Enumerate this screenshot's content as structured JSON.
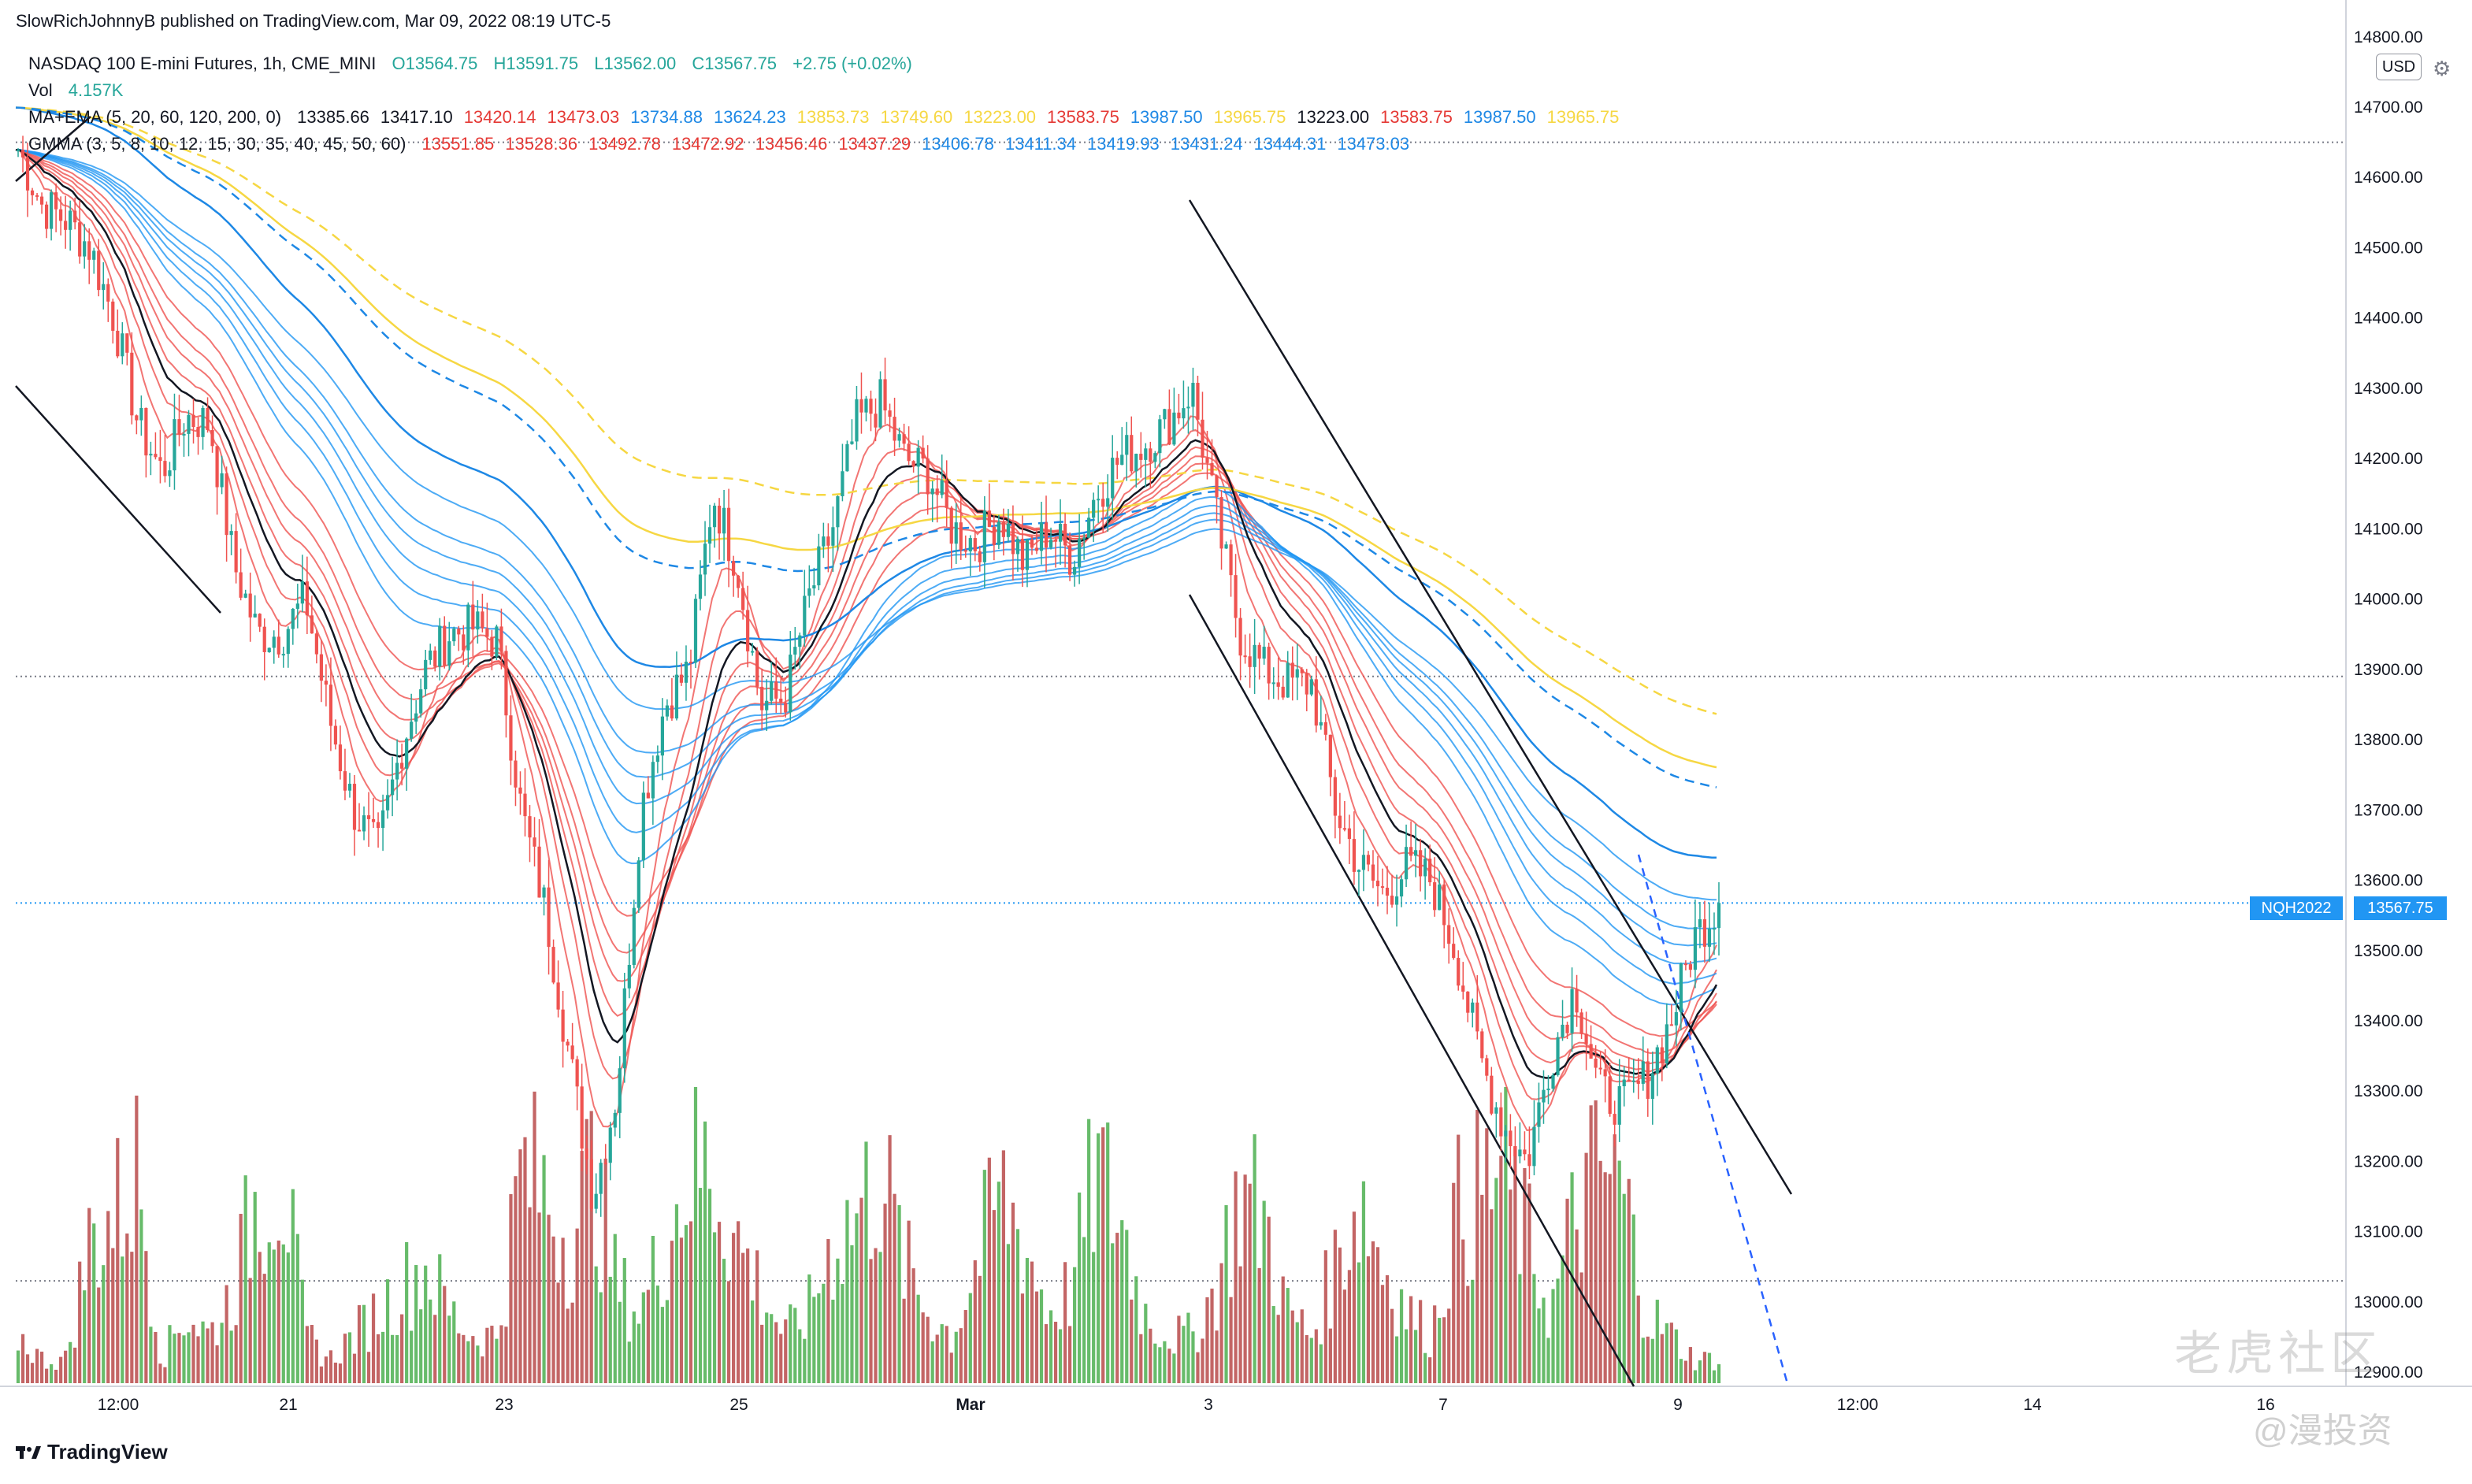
{
  "header": {
    "publisher": "SlowRichJohnnyB published on TradingView.com, Mar 09, 2022 08:19 UTC-5"
  },
  "legend": {
    "line1": {
      "symbol": "NASDAQ 100 E-mini Futures, 1h, CME_MINI",
      "o": "O13564.75",
      "h": "H13591.75",
      "l": "L13562.00",
      "c": "C13567.75",
      "chg": "+2.75 (+0.02%)"
    },
    "line2": {
      "label": "Vol",
      "value": "4.157K"
    },
    "line3": {
      "label": "MA+EMA (5, 20, 60, 120, 200, 0)",
      "values": [
        "13385.66",
        "13417.10",
        "13420.14",
        "13473.03",
        "13734.88",
        "13624.23",
        "13853.73",
        "13749.60",
        "13223.00",
        "13583.75",
        "13987.50",
        "13965.75",
        "13223.00",
        "13583.75",
        "13987.50",
        "13965.75"
      ],
      "colors": [
        "#131722",
        "#131722",
        "#e53935",
        "#e53935",
        "#1e88e5",
        "#1e88e5",
        "#f6d743",
        "#f6d743",
        "#f6d743",
        "#e53935",
        "#1e88e5",
        "#f6d743",
        "#131722",
        "#e53935",
        "#1e88e5",
        "#f6d743"
      ]
    },
    "line4": {
      "label": "GMMA (3, 5, 8, 10, 12, 15, 30, 35, 40, 45, 50, 60)",
      "values": [
        "13551.85",
        "13528.36",
        "13492.78",
        "13472.92",
        "13456.46",
        "13437.29",
        "13406.78",
        "13411.34",
        "13419.93",
        "13431.24",
        "13444.31",
        "13473.03"
      ]
    }
  },
  "price_scale": {
    "currency": "USD",
    "last_symbol": "NQH2022",
    "last_price": "13567.75"
  },
  "watermark": {
    "brand": "老虎社区",
    "handle": "@漫投资",
    "logo": "TradingView"
  },
  "chart_data": {
    "type": "candlestick",
    "title": "NASDAQ 100 E-mini Futures, 1h, CME_MINI",
    "x_tick_labels": [
      "12:00",
      "21",
      "23",
      "25",
      "Mar",
      "3",
      "7",
      "9",
      "12:00",
      "14",
      "16"
    ],
    "y_tick_labels": [
      "12900.00",
      "13000.00",
      "13100.00",
      "13200.00",
      "13300.00",
      "13400.00",
      "13500.00",
      "13600.00",
      "13700.00",
      "13800.00",
      "13900.00",
      "14000.00",
      "14100.00",
      "14200.00",
      "14300.00",
      "14400.00",
      "14500.00",
      "14600.00",
      "14700.00",
      "14800.00"
    ],
    "ylim": [
      12880,
      14830
    ],
    "grid": false,
    "ohlc_path": [
      14640,
      14560,
      14540,
      14500,
      14400,
      14250,
      14180,
      14260,
      14250,
      14050,
      13950,
      13950,
      14000,
      13830,
      13700,
      13640,
      13790,
      13900,
      13950,
      13960,
      13940,
      13700,
      13560,
      13350,
      13150,
      13300,
      13700,
      13850,
      13900,
      14150,
      14050,
      13850,
      13860,
      14000,
      14100,
      14250,
      14280,
      14200,
      14180,
      14100,
      14080,
      14120,
      14050,
      14100,
      14060,
      14150,
      14200,
      14220,
      14250,
      14300,
      14120,
      13950,
      13900,
      13880,
      13880,
      13700,
      13620,
      13580,
      13620,
      13600,
      13500,
      13350,
      13250,
      13200,
      13350,
      13450,
      13300,
      13280,
      13320,
      13400,
      13520,
      13568
    ],
    "volume_profile": [
      0.2,
      0.1,
      0.1,
      0.6,
      0.7,
      0.9,
      0.1,
      0.3,
      0.2,
      0.4,
      0.8,
      0.9,
      0.2,
      0.1,
      0.2,
      0.3,
      0.4,
      0.5,
      0.3,
      0.2,
      0.2,
      0.9,
      0.8,
      0.6,
      0.9,
      0.4,
      0.3,
      0.6,
      0.9,
      0.9,
      0.6,
      0.4,
      0.2,
      0.3,
      0.6,
      0.7,
      0.9,
      0.5,
      0.3,
      0.2,
      0.5,
      0.8,
      0.6,
      0.3,
      0.4,
      0.9,
      0.7,
      0.3,
      0.2,
      0.2,
      0.4,
      0.8,
      0.7,
      0.3,
      0.2,
      0.5,
      0.8,
      0.5,
      0.3,
      0.2,
      0.7,
      0.8,
      0.9,
      0.6,
      0.3,
      0.7,
      0.9,
      0.8,
      0.3,
      0.2,
      0.1,
      0.1
    ],
    "last_price": 13567.75,
    "horizontal_levels": [
      14650,
      13890,
      13030
    ],
    "volume_axis_max": "4.157K"
  }
}
